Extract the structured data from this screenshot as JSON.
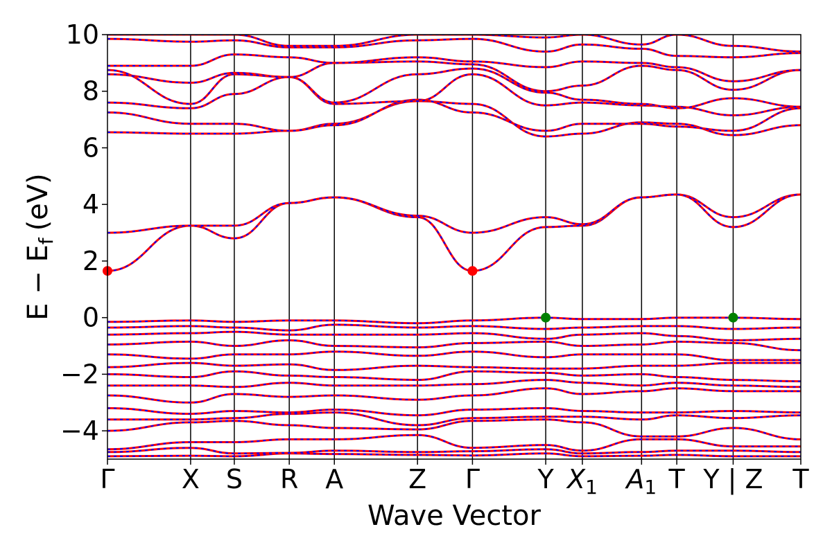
{
  "chart_data": {
    "type": "line",
    "xlabel": "Wave Vector",
    "ylabel": "E − E",
    "ylabel_subscript": "f",
    "ylabel_unit": "(eV)",
    "ylim": [
      -5,
      10
    ],
    "yticks": [
      10,
      8,
      6,
      4,
      2,
      0,
      -2,
      -4
    ],
    "ytick_labels": [
      "10",
      "8",
      "6",
      "4",
      "2",
      "0",
      "−2",
      "−4"
    ],
    "xlim": [
      0,
      24.6
    ],
    "kpoints": [
      {
        "label": "Γ",
        "sub": "",
        "x": 0.0
      },
      {
        "label": "X",
        "sub": "",
        "x": 2.95
      },
      {
        "label": "S",
        "sub": "",
        "x": 4.5
      },
      {
        "label": "R",
        "sub": "",
        "x": 6.45
      },
      {
        "label": "A",
        "sub": "",
        "x": 8.05
      },
      {
        "label": "Z",
        "sub": "",
        "x": 11.0
      },
      {
        "label": "Γ",
        "sub": "",
        "x": 12.95
      },
      {
        "label": "Y",
        "sub": "",
        "x": 15.55
      },
      {
        "label": "X",
        "sub": "1",
        "x": 16.85
      },
      {
        "label": "A",
        "sub": "1",
        "x": 18.95
      },
      {
        "label": "T",
        "sub": "",
        "x": 20.2
      },
      {
        "label": "Y | Z",
        "sub": "",
        "x": 22.2
      },
      {
        "label": "T",
        "sub": "",
        "x": 24.6
      }
    ],
    "series": [
      {
        "color": "#ff0000",
        "style": "solid",
        "width": 3
      },
      {
        "color": "#0000ff",
        "style": "dashed",
        "width": 3
      }
    ],
    "bands": [
      {
        "y": [
          -4.9,
          -4.88,
          -4.9,
          -4.8,
          -4.82,
          -4.85,
          -4.87,
          -4.8,
          -4.9,
          -4.88,
          -4.85,
          -4.9,
          -4.9
        ]
      },
      {
        "y": [
          -4.75,
          -4.6,
          -4.8,
          -4.78,
          -4.7,
          -4.75,
          -4.72,
          -4.65,
          -4.8,
          -4.75,
          -4.7,
          -4.7,
          -4.75
        ]
      },
      {
        "y": [
          -4.65,
          -4.4,
          -4.4,
          -4.3,
          -4.3,
          -4.15,
          -4.6,
          -4.5,
          -4.7,
          -4.3,
          -4.3,
          -4.55,
          -4.55
        ]
      },
      {
        "y": [
          -4.0,
          -3.7,
          -3.65,
          -3.8,
          -3.9,
          -3.95,
          -3.65,
          -3.6,
          -3.7,
          -4.2,
          -4.2,
          -3.9,
          -4.3
        ]
      },
      {
        "y": [
          -3.6,
          -3.6,
          -3.55,
          -3.4,
          -3.35,
          -3.8,
          -3.55,
          -3.5,
          -3.5,
          -3.6,
          -3.45,
          -3.55,
          -3.45
        ]
      },
      {
        "y": [
          -3.2,
          -3.4,
          -3.3,
          -3.35,
          -3.25,
          -3.45,
          -3.25,
          -3.2,
          -3.3,
          -3.35,
          -3.35,
          -3.3,
          -3.35
        ]
      },
      {
        "y": [
          -2.75,
          -3.0,
          -2.7,
          -2.8,
          -2.75,
          -2.9,
          -2.75,
          -2.5,
          -2.7,
          -2.6,
          -2.5,
          -2.6,
          -2.6
        ]
      },
      {
        "y": [
          -2.4,
          -2.4,
          -2.45,
          -2.3,
          -2.4,
          -2.4,
          -2.35,
          -2.2,
          -2.3,
          -2.4,
          -2.3,
          -2.4,
          -2.45
        ]
      },
      {
        "y": [
          -2.0,
          -2.1,
          -1.9,
          -2.05,
          -2.1,
          -2.2,
          -1.9,
          -1.95,
          -2.05,
          -2.0,
          -2.1,
          -2.2,
          -2.25
        ]
      },
      {
        "y": [
          -1.75,
          -1.6,
          -1.7,
          -1.65,
          -1.85,
          -1.7,
          -1.75,
          -1.8,
          -1.8,
          -1.7,
          -1.7,
          -1.6,
          -1.6
        ]
      },
      {
        "y": [
          -1.3,
          -1.45,
          -1.3,
          -1.3,
          -1.2,
          -1.35,
          -1.2,
          -1.4,
          -1.3,
          -1.3,
          -1.3,
          -1.5,
          -1.5
        ]
      },
      {
        "y": [
          -0.95,
          -0.85,
          -1.0,
          -0.8,
          -1.0,
          -1.05,
          -0.9,
          -0.85,
          -1.0,
          -0.95,
          -0.85,
          -0.9,
          -1.15
        ]
      },
      {
        "y": [
          -0.6,
          -0.55,
          -0.5,
          -0.6,
          -0.6,
          -0.6,
          -0.55,
          -0.75,
          -0.6,
          -0.55,
          -0.65,
          -0.8,
          -0.75
        ]
      },
      {
        "y": [
          -0.35,
          -0.3,
          -0.35,
          -0.45,
          -0.25,
          -0.35,
          -0.3,
          -0.4,
          -0.35,
          -0.3,
          -0.3,
          -0.4,
          -0.35
        ]
      },
      {
        "y": [
          -0.15,
          -0.1,
          -0.15,
          -0.1,
          -0.1,
          -0.2,
          -0.1,
          0.0,
          -0.05,
          -0.05,
          0.0,
          0.0,
          -0.05
        ]
      },
      {
        "y": [
          1.65,
          3.25,
          2.8,
          4.05,
          4.25,
          3.55,
          1.65,
          3.2,
          3.25,
          4.25,
          4.35,
          3.55,
          4.35
        ]
      },
      {
        "y": [
          3.0,
          3.25,
          3.25,
          4.05,
          4.25,
          3.6,
          3.0,
          3.55,
          3.3,
          4.25,
          4.35,
          3.2,
          4.35
        ]
      },
      {
        "y": [
          6.55,
          6.5,
          6.5,
          6.6,
          6.85,
          7.65,
          7.55,
          6.4,
          6.5,
          6.9,
          6.85,
          6.45,
          6.8
        ]
      },
      {
        "y": [
          7.25,
          6.85,
          6.85,
          6.6,
          6.8,
          7.7,
          7.25,
          6.6,
          6.85,
          6.85,
          6.75,
          6.6,
          7.4
        ]
      },
      {
        "y": [
          7.6,
          7.4,
          7.9,
          8.5,
          7.55,
          7.65,
          8.6,
          7.5,
          7.6,
          7.5,
          7.45,
          7.15,
          7.45
        ]
      },
      {
        "y": [
          8.6,
          8.3,
          8.65,
          8.5,
          7.6,
          8.6,
          8.8,
          7.95,
          7.7,
          7.55,
          7.4,
          7.75,
          7.45
        ]
      },
      {
        "y": [
          8.75,
          7.55,
          8.6,
          8.5,
          9.0,
          9.05,
          8.95,
          8.0,
          8.2,
          8.9,
          8.75,
          8.05,
          8.75
        ]
      },
      {
        "y": [
          8.9,
          8.9,
          9.3,
          9.2,
          9.0,
          9.2,
          9.05,
          8.85,
          9.05,
          9.0,
          8.85,
          8.35,
          8.75
        ]
      },
      {
        "y": [
          9.85,
          9.75,
          9.8,
          9.55,
          9.55,
          9.8,
          9.85,
          9.4,
          9.65,
          9.5,
          9.25,
          9.2,
          9.35
        ]
      },
      {
        "y": [
          10.0,
          10.0,
          10.0,
          9.6,
          9.6,
          10.0,
          10.0,
          9.9,
          10.0,
          9.65,
          10.0,
          9.6,
          9.4
        ]
      }
    ],
    "markers": [
      {
        "x": 0.0,
        "y": 1.65,
        "color": "#ff0000"
      },
      {
        "x": 12.95,
        "y": 1.65,
        "color": "#ff0000"
      },
      {
        "x": 15.55,
        "y": 0.0,
        "color": "#008000"
      },
      {
        "x": 22.2,
        "y": 0.0,
        "color": "#008000"
      }
    ]
  }
}
